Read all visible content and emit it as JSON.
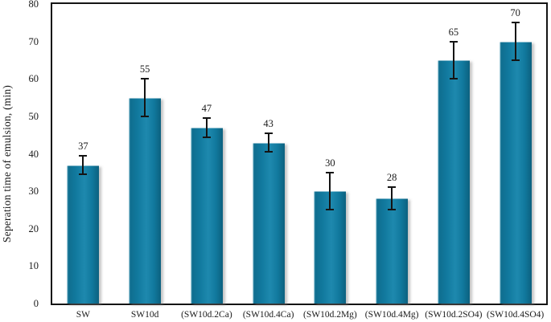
{
  "chart_data": {
    "type": "bar",
    "title": "",
    "categories": [
      "SW",
      "SW10d",
      "(SW10d.2Ca)",
      "(SW10d.4Ca)",
      "(SW10d.2Mg)",
      "(SW10d.4Mg)",
      "(SW10d.2SO4)",
      "(SW10d.4SO4)"
    ],
    "values": [
      37,
      55,
      47,
      43,
      30,
      28,
      65,
      70
    ],
    "value_labels": [
      "37",
      "55",
      "47",
      "43",
      "30",
      "28",
      "65",
      "70"
    ],
    "errors": [
      2.5,
      5,
      2.5,
      2.5,
      5,
      3,
      5,
      5
    ],
    "xlabel": "",
    "ylabel": "Seperation time of emulsion, (min)",
    "ylim": [
      0,
      80
    ],
    "yticks": [
      0,
      10,
      20,
      30,
      40,
      50,
      60,
      70,
      80
    ],
    "grid": false,
    "legend": "none",
    "bar_color": "#11799e",
    "bar_color_light": "#1e89ae",
    "bar_color_dark": "#0c617f",
    "bar_edge_highlight": "#8ec4d6",
    "error_bar_color": "#141414",
    "axis_frame_color": "#141414",
    "text_color": "#1a1a1a",
    "background_color": "#ffffff"
  }
}
